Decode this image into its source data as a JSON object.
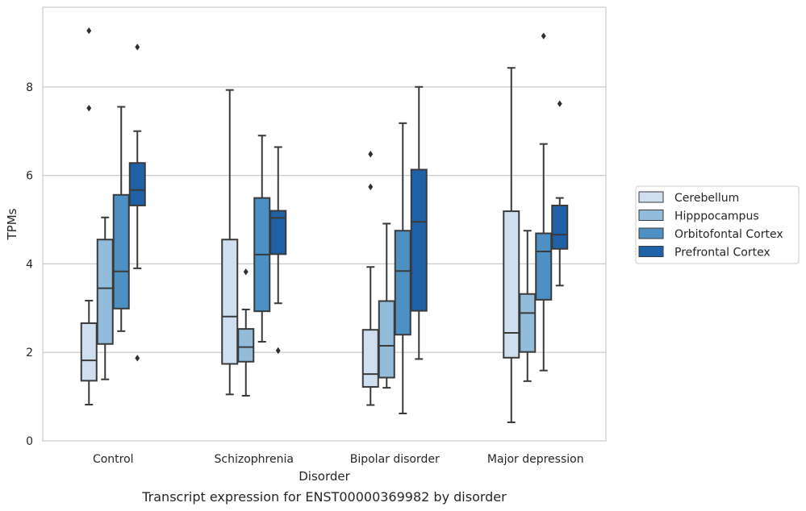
{
  "chart_data": {
    "type": "box",
    "title": "Transcript expression for ENST00000369982 by disorder",
    "xlabel": "Disorder",
    "ylabel": "TPMs",
    "ylim": [
      0,
      9.8
    ],
    "yticks": [
      0,
      2,
      4,
      6,
      8
    ],
    "grid": "horizontal",
    "legend_position": "right",
    "categories": [
      "Control",
      "Schizophrenia",
      "Bipolar disorder",
      "Major depression"
    ],
    "series": [
      {
        "name": "Cerebellum",
        "color": "#cfdff0",
        "boxes": [
          {
            "whislo": 0.82,
            "q1": 1.36,
            "med": 1.82,
            "q3": 2.66,
            "whishi": 3.17,
            "fliers": []
          },
          {
            "whislo": 1.05,
            "q1": 1.74,
            "med": 2.81,
            "q3": 4.55,
            "whishi": 7.93,
            "fliers": []
          },
          {
            "whislo": 0.81,
            "q1": 1.22,
            "med": 1.51,
            "q3": 2.51,
            "whishi": 3.93,
            "fliers": [
              5.74,
              6.48
            ]
          },
          {
            "whislo": 0.42,
            "q1": 1.88,
            "med": 2.44,
            "q3": 5.19,
            "whishi": 8.43,
            "fliers": []
          }
        ]
      },
      {
        "name": "Hipppocampus",
        "color": "#93bcdb",
        "boxes": [
          {
            "whislo": 1.39,
            "q1": 2.19,
            "med": 3.45,
            "q3": 4.55,
            "whishi": 5.05,
            "fliers": []
          },
          {
            "whislo": 1.02,
            "q1": 1.79,
            "med": 2.12,
            "q3": 2.53,
            "whishi": 2.97,
            "fliers": [
              3.82
            ]
          },
          {
            "whislo": 1.2,
            "q1": 1.43,
            "med": 2.15,
            "q3": 3.16,
            "whishi": 4.91,
            "fliers": []
          },
          {
            "whislo": 1.35,
            "q1": 2.01,
            "med": 2.89,
            "q3": 3.32,
            "whishi": 4.75,
            "fliers": []
          }
        ]
      },
      {
        "name": "Orbitofontal Cortex",
        "color": "#4d90c3",
        "boxes": [
          {
            "whislo": 2.48,
            "q1": 2.99,
            "med": 3.83,
            "q3": 5.56,
            "whishi": 7.55,
            "fliers": []
          },
          {
            "whislo": 2.24,
            "q1": 2.93,
            "med": 4.21,
            "q3": 5.49,
            "whishi": 6.9,
            "fliers": []
          },
          {
            "whislo": 0.62,
            "q1": 2.4,
            "med": 3.84,
            "q3": 4.75,
            "whishi": 7.18,
            "fliers": []
          },
          {
            "whislo": 1.59,
            "q1": 3.19,
            "med": 4.28,
            "q3": 4.69,
            "whishi": 6.71,
            "fliers": [
              9.15
            ]
          }
        ]
      },
      {
        "name": "Prefrontal Cortex",
        "color": "#1f61a6",
        "boxes": [
          {
            "whislo": 3.9,
            "q1": 5.32,
            "med": 5.67,
            "q3": 6.28,
            "whishi": 7.0,
            "fliers": [
              1.87,
              8.9
            ]
          },
          {
            "whislo": 3.11,
            "q1": 4.22,
            "med": 5.04,
            "q3": 5.2,
            "whishi": 6.64,
            "fliers": [
              2.04
            ]
          },
          {
            "whislo": 1.85,
            "q1": 2.94,
            "med": 4.95,
            "q3": 6.13,
            "whishi": 8.0,
            "fliers": []
          },
          {
            "whislo": 3.51,
            "q1": 4.34,
            "med": 4.66,
            "q3": 5.32,
            "whishi": 5.49,
            "fliers": [
              7.62
            ]
          }
        ]
      }
    ],
    "extra_fliers": [
      {
        "category": 0,
        "series": 0,
        "values": [
          7.52,
          9.27
        ]
      }
    ]
  }
}
